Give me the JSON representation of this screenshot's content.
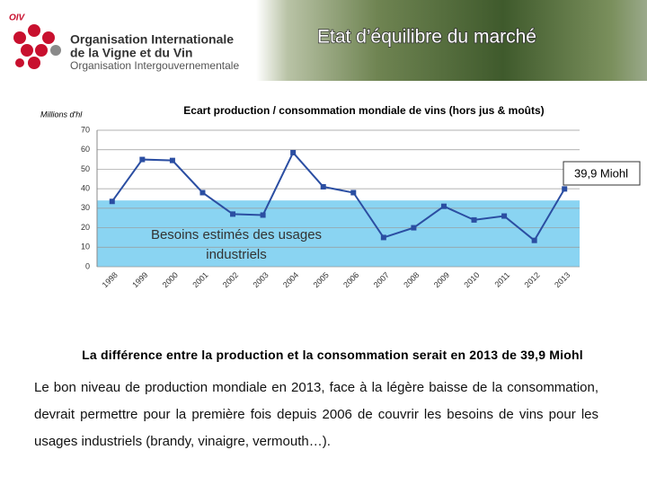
{
  "header": {
    "logo_mark": "OIV",
    "org_name_line1": "Organisation Internationale",
    "org_name_line2": "de la Vigne et du Vin",
    "org_type": "Organisation Intergouvernementale",
    "title": "Etat d’équilibre du marché"
  },
  "chart_data": {
    "type": "line",
    "title": "Ecart production / consommation mondiale de vins (hors jus & moûts)",
    "y_label": "Millions d'hl",
    "categories": [
      "1998",
      "1999",
      "2000",
      "2001",
      "2002",
      "2003",
      "2004",
      "2005",
      "2006",
      "2007",
      "2008",
      "2009",
      "2010",
      "2011",
      "2012",
      "2013"
    ],
    "values": [
      33.5,
      55,
      54.5,
      38,
      27,
      26.5,
      58.5,
      41,
      38,
      15,
      20,
      31,
      24,
      26,
      13.5,
      39.9
    ],
    "color": "#2b4ea2",
    "band": {
      "label_lines": [
        "Besoins estimés des usages",
        "industriels"
      ],
      "value": 34,
      "color": "#8ad4f2"
    },
    "annotations": [
      {
        "text": "39,9 Miohl"
      }
    ],
    "ylim": [
      0,
      70
    ],
    "yticks": [
      0,
      10,
      20,
      30,
      40,
      50,
      60,
      70
    ],
    "grid": true
  },
  "summary": {
    "headline": "La différence entre la production et la consommation serait en 2013 de 39,9 Miohl",
    "paragraph": "Le bon niveau de production mondiale en 2013, face à la légère baisse de la consommation, devrait permettre pour la première fois depuis 2006 de couvrir les besoins de vins pour les usages industriels (brandy, vinaigre, vermouth…)."
  }
}
